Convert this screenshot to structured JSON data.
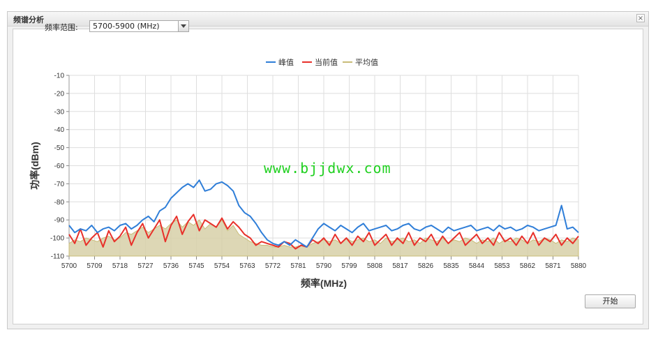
{
  "window": {
    "title": "频谱分析",
    "close_glyph": "×"
  },
  "controls": {
    "range_label": "频率范围:",
    "range_value": "5700-5900 (MHz)",
    "start_label": "开始"
  },
  "watermark": "www.bjjdwx.com",
  "colors": {
    "peak": "#2f7ed8",
    "current": "#e8302a",
    "average": "#d7d0a8",
    "average_line": "#c9bc78"
  },
  "chart_data": {
    "type": "line",
    "title": "",
    "xlabel": "频率(MHz)",
    "ylabel": "功率(dBm)",
    "xlim": [
      5700,
      5880
    ],
    "ylim": [
      -110,
      -10
    ],
    "x_ticks": [
      "5700",
      "5709",
      "5718",
      "5727",
      "5736",
      "5745",
      "5754",
      "5763",
      "5772",
      "5781",
      "5790",
      "5799",
      "5808",
      "5817",
      "5826",
      "5835",
      "5844",
      "5853",
      "5862",
      "5871",
      "5880"
    ],
    "y_ticks": [
      "-10",
      "-20",
      "-30",
      "-40",
      "-50",
      "-60",
      "-70",
      "-80",
      "-90",
      "-100",
      "-110"
    ],
    "grid": true,
    "legend_position": "top-center",
    "x_step": 2,
    "series": [
      {
        "name": "峰值",
        "values": [
          -93,
          -97,
          -95,
          -96,
          -93,
          -97,
          -95,
          -94,
          -96,
          -93,
          -92,
          -95,
          -93,
          -90,
          -88,
          -91,
          -85,
          -83,
          -78,
          -75,
          -72,
          -70,
          -72,
          -68,
          -74,
          -73,
          -70,
          -69,
          -71,
          -74,
          -82,
          -86,
          -88,
          -92,
          -97,
          -101,
          -103,
          -104,
          -102,
          -104,
          -101,
          -103,
          -105,
          -100,
          -95,
          -92,
          -94,
          -96,
          -93,
          -95,
          -97,
          -94,
          -92,
          -96,
          -95,
          -94,
          -93,
          -96,
          -95,
          -93,
          -92,
          -95,
          -96,
          -94,
          -93,
          -95,
          -97,
          -94,
          -96,
          -95,
          -94,
          -93,
          -96,
          -95,
          -94,
          -96,
          -93,
          -95,
          -94,
          -96,
          -95,
          -93,
          -94,
          -96,
          -95,
          -94,
          -93,
          -82,
          -95,
          -94,
          -97
        ]
      },
      {
        "name": "当前值",
        "values": [
          -98,
          -103,
          -95,
          -104,
          -100,
          -97,
          -105,
          -96,
          -102,
          -99,
          -94,
          -104,
          -97,
          -92,
          -100,
          -95,
          -90,
          -102,
          -93,
          -88,
          -98,
          -91,
          -87,
          -96,
          -90,
          -92,
          -94,
          -89,
          -95,
          -91,
          -94,
          -98,
          -100,
          -104,
          -102,
          -103,
          -104,
          -105,
          -102,
          -103,
          -106,
          -104,
          -105,
          -101,
          -103,
          -100,
          -104,
          -98,
          -103,
          -100,
          -104,
          -99,
          -102,
          -97,
          -104,
          -101,
          -98,
          -104,
          -100,
          -103,
          -97,
          -104,
          -100,
          -102,
          -98,
          -104,
          -99,
          -103,
          -100,
          -97,
          -104,
          -101,
          -98,
          -103,
          -100,
          -104,
          -97,
          -102,
          -100,
          -104,
          -99,
          -103,
          -97,
          -104,
          -100,
          -102,
          -98,
          -104,
          -100,
          -103,
          -99
        ]
      },
      {
        "name": "平均值",
        "values": [
          -103,
          -101,
          -102,
          -100,
          -101,
          -102,
          -100,
          -99,
          -101,
          -100,
          -97,
          -98,
          -96,
          -94,
          -97,
          -95,
          -93,
          -95,
          -92,
          -90,
          -94,
          -91,
          -93,
          -90,
          -95,
          -92,
          -94,
          -90,
          -96,
          -93,
          -98,
          -100,
          -102,
          -103,
          -104,
          -104,
          -105,
          -105,
          -104,
          -105,
          -105,
          -104,
          -105,
          -103,
          -102,
          -101,
          -102,
          -101,
          -103,
          -100,
          -102,
          -101,
          -100,
          -102,
          -101,
          -103,
          -100,
          -102,
          -101,
          -100,
          -102,
          -101,
          -103,
          -100,
          -101,
          -102,
          -100,
          -103,
          -101,
          -102,
          -100,
          -101,
          -103,
          -101,
          -102,
          -100,
          -103,
          -101,
          -102,
          -100,
          -101,
          -103,
          -101,
          -102,
          -100,
          -101,
          -103,
          -101,
          -102,
          -100,
          -101
        ]
      }
    ]
  }
}
